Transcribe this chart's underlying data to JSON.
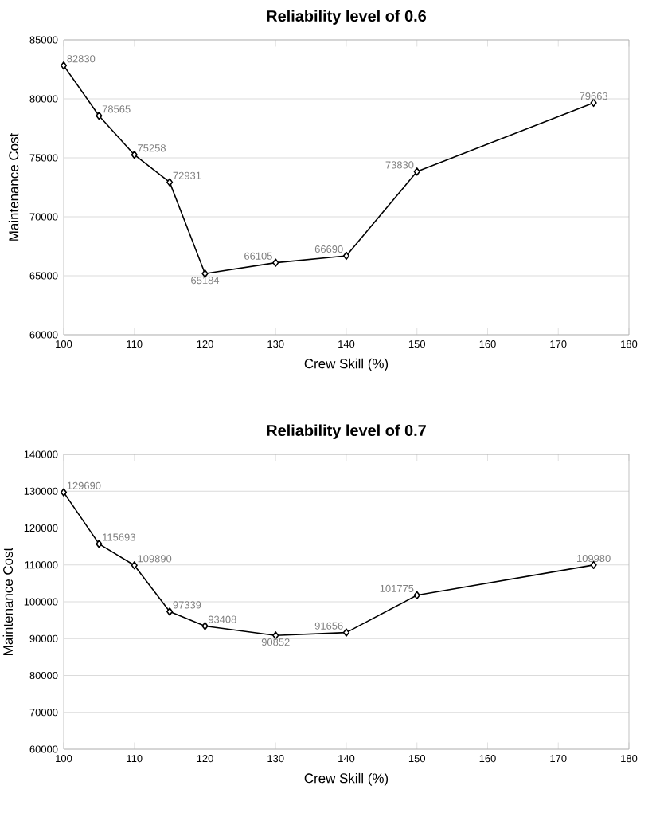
{
  "chart_data": [
    {
      "type": "line",
      "title": "Reliability level of 0.6",
      "xlabel": "Crew Skill (%)",
      "ylabel": "Maintenance Cost",
      "x": [
        100,
        105,
        110,
        115,
        120,
        130,
        140,
        150,
        175
      ],
      "series": [
        {
          "color": "#000000",
          "values": [
            82830,
            78565,
            75258,
            72931,
            65184,
            66105,
            66690,
            73830,
            79663
          ]
        }
      ],
      "xlim": [
        100,
        180
      ],
      "xticks": [
        100,
        110,
        120,
        130,
        140,
        150,
        160,
        170,
        180
      ],
      "ylim": [
        60000,
        85000
      ],
      "yticks": [
        60000,
        65000,
        70000,
        75000,
        80000,
        85000
      ],
      "grid": "y",
      "marker": "diamond",
      "data_labels": true
    },
    {
      "type": "line",
      "title": "Reliability level of 0.7",
      "xlabel": "Crew Skill (%)",
      "ylabel": "Maintenance Cost",
      "x": [
        100,
        105,
        110,
        115,
        120,
        130,
        140,
        150,
        175
      ],
      "series": [
        {
          "color": "#000000",
          "values": [
            129690,
            115693,
            109890,
            97339,
            93408,
            90852,
            91656,
            101775,
            109980
          ]
        }
      ],
      "xlim": [
        100,
        180
      ],
      "xticks": [
        100,
        110,
        120,
        130,
        140,
        150,
        160,
        170,
        180
      ],
      "ylim": [
        60000,
        140000
      ],
      "yticks": [
        60000,
        70000,
        80000,
        90000,
        100000,
        110000,
        120000,
        130000,
        140000
      ],
      "grid": "y",
      "marker": "diamond",
      "data_labels": true
    }
  ]
}
